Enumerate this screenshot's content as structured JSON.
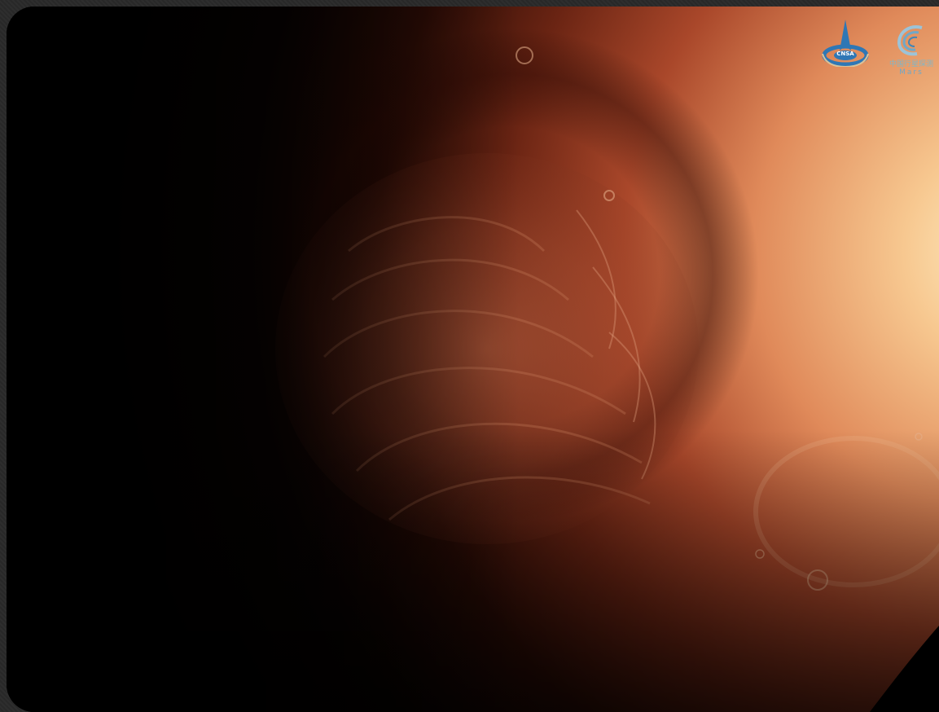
{
  "image": {
    "description_subject": "mars-north-polar-region",
    "colors": {
      "dark_side": "#050202",
      "mid_surface": "#7a2f1a",
      "bright_limb": "#f2b07a",
      "highlight": "#fde2b2",
      "logo_blue": "#2f77b5",
      "logo_text": "#6fa8c8"
    }
  },
  "logos": {
    "cnsa": {
      "icon": "cnsa-emblem-icon",
      "text": "CNSA"
    },
    "mars_mission": {
      "icon": "planetary-exploration-emblem-icon",
      "caption": "中国行星探测",
      "word": "Mars"
    }
  }
}
